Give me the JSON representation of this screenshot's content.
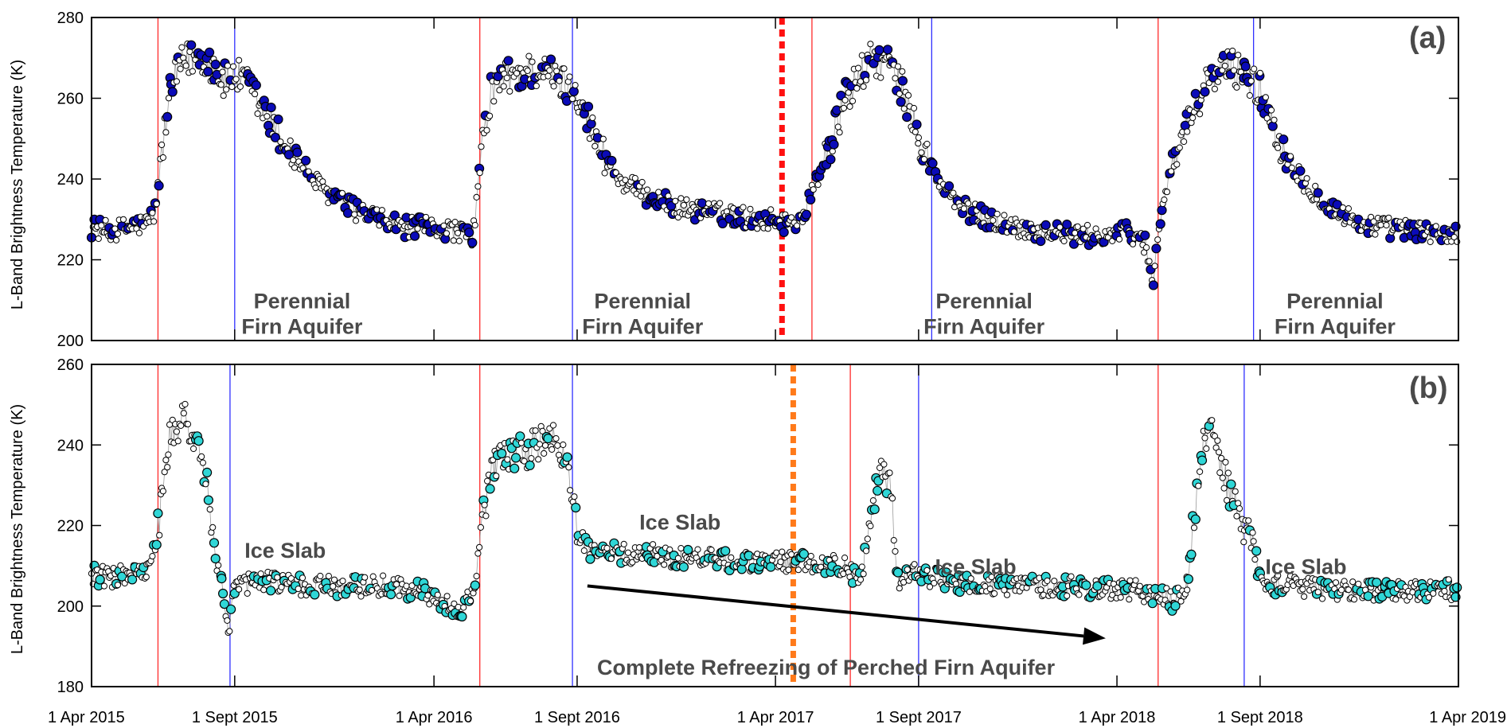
{
  "chart_data": [
    {
      "type": "scatter",
      "panel": "(a)",
      "ylabel": "L-Band Brightness Temperature (K)",
      "ylim": [
        200,
        280
      ],
      "yticks": [
        200,
        220,
        240,
        260,
        280
      ],
      "xlim": [
        "2015-04-01",
        "2019-04-01"
      ],
      "xticks": [
        "2015-04-01",
        "2015-09-01",
        "2016-04-01",
        "2016-09-01",
        "2017-04-01",
        "2017-09-01",
        "2018-04-01",
        "2018-09-01",
        "2019-04-01"
      ],
      "xtick_labels": [
        "1 Apr 2015",
        "1 Sept 2015",
        "1 Apr 2016",
        "1 Sept 2016",
        "1 Apr 2017",
        "1 Sept 2017",
        "1 Apr 2018",
        "1 Sept 2018",
        "1 Apr 2019"
      ],
      "grid": false,
      "marker_colors": {
        "primary": "#0b0bb8",
        "secondary": "#ffffff"
      },
      "series": [
        {
          "marker": "circle",
          "x": [
            "2015-04-01",
            "2015-04-20",
            "2015-05-10",
            "2015-05-30",
            "2015-06-08",
            "2015-06-12",
            "2015-06-18",
            "2015-06-25",
            "2015-07-05",
            "2015-07-15",
            "2015-07-30",
            "2015-08-10",
            "2015-08-20",
            "2015-09-01",
            "2015-09-15",
            "2015-10-01",
            "2015-10-20",
            "2015-11-10",
            "2015-12-01",
            "2016-01-01",
            "2016-02-01",
            "2016-03-01",
            "2016-04-01",
            "2016-05-01",
            "2016-05-12",
            "2016-05-20",
            "2016-06-01",
            "2016-06-15",
            "2016-07-01",
            "2016-07-15",
            "2016-08-01",
            "2016-08-15",
            "2016-09-01",
            "2016-09-20",
            "2016-10-15",
            "2016-11-15",
            "2016-12-15",
            "2017-01-15",
            "2017-02-15",
            "2017-03-15",
            "2017-04-01",
            "2017-04-15",
            "2017-05-01",
            "2017-05-15",
            "2017-06-01",
            "2017-06-15",
            "2017-07-01",
            "2017-07-15",
            "2017-08-01",
            "2017-08-15",
            "2017-09-01",
            "2017-09-20",
            "2017-10-15",
            "2017-11-15",
            "2017-12-15",
            "2018-01-15",
            "2018-02-15",
            "2018-03-15",
            "2018-04-15",
            "2018-05-01",
            "2018-05-10",
            "2018-05-20",
            "2018-06-01",
            "2018-06-15",
            "2018-07-01",
            "2018-07-15",
            "2018-08-01",
            "2018-08-15",
            "2018-09-01",
            "2018-09-20",
            "2018-10-15",
            "2018-11-15",
            "2018-12-15",
            "2019-01-15",
            "2019-02-15",
            "2019-04-01"
          ],
          "y": [
            228,
            227,
            228,
            229,
            232,
            240,
            252,
            262,
            268,
            270,
            270,
            268,
            264,
            266,
            263,
            257,
            250,
            244,
            238,
            233,
            230,
            228,
            228,
            227,
            224,
            243,
            262,
            265,
            266,
            267,
            266,
            264,
            262,
            250,
            240,
            236,
            233,
            232,
            231,
            230,
            230,
            229,
            231,
            240,
            250,
            260,
            266,
            270,
            268,
            262,
            250,
            240,
            233,
            230,
            228,
            227,
            226,
            226,
            227,
            224,
            215,
            235,
            245,
            252,
            262,
            266,
            268,
            266,
            262,
            250,
            240,
            233,
            229,
            228,
            227,
            226
          ]
        }
      ],
      "annotations": [
        {
          "text": "Perennial\nFirn Aquifer",
          "x": "2015-11-12",
          "y": 208
        },
        {
          "text": "Perennial\nFirn Aquifer",
          "x": "2016-11-10",
          "y": 208
        },
        {
          "text": "Perennial\nFirn Aquifer",
          "x": "2017-11-10",
          "y": 208
        },
        {
          "text": "Perennial\nFirn Aquifer",
          "x": "2018-11-20",
          "y": 208
        }
      ],
      "vertical_lines": {
        "red": [
          "2015-06-11",
          "2016-05-20",
          "2017-05-10",
          "2018-05-15"
        ],
        "blue": [
          "2015-09-01",
          "2016-08-27",
          "2017-09-15",
          "2018-08-25"
        ],
        "dotted_red": "2017-04-08"
      }
    },
    {
      "type": "scatter",
      "panel": "(b)",
      "ylabel": "L-Band Brightness Temperature (K)",
      "ylim": [
        180,
        260
      ],
      "yticks": [
        180,
        200,
        220,
        240,
        260
      ],
      "xlim": [
        "2015-04-01",
        "2019-04-01"
      ],
      "xticks": [
        "2015-04-01",
        "2015-09-01",
        "2016-04-01",
        "2016-09-01",
        "2017-04-01",
        "2017-09-01",
        "2018-04-01",
        "2018-09-01",
        "2019-04-01"
      ],
      "xtick_labels": [
        "1 Apr 2015",
        "1 Sept 2015",
        "1 Apr 2016",
        "1 Sept 2016",
        "1 Apr 2017",
        "1 Sept 2017",
        "1 Apr 2018",
        "1 Sept 2018",
        "1 Apr 2019"
      ],
      "grid": false,
      "marker_colors": {
        "primary": "#2fd6d6",
        "secondary": "#ffffff"
      },
      "series": [
        {
          "marker": "circle",
          "x": [
            "2015-04-01",
            "2015-04-20",
            "2015-05-10",
            "2015-05-30",
            "2015-06-08",
            "2015-06-15",
            "2015-06-22",
            "2015-07-01",
            "2015-07-10",
            "2015-07-20",
            "2015-08-01",
            "2015-08-10",
            "2015-08-18",
            "2015-08-25",
            "2015-09-01",
            "2015-09-20",
            "2015-10-15",
            "2015-11-15",
            "2015-12-15",
            "2016-01-15",
            "2016-02-15",
            "2016-03-15",
            "2016-04-15",
            "2016-05-01",
            "2016-05-15",
            "2016-05-25",
            "2016-06-05",
            "2016-06-20",
            "2016-07-05",
            "2016-07-20",
            "2016-08-05",
            "2016-08-20",
            "2016-09-01",
            "2016-09-15",
            "2016-10-15",
            "2016-11-15",
            "2016-12-15",
            "2017-01-15",
            "2017-02-15",
            "2017-03-15",
            "2017-04-15",
            "2017-05-15",
            "2017-06-15",
            "2017-07-01",
            "2017-07-10",
            "2017-07-20",
            "2017-08-01",
            "2017-08-10",
            "2017-08-20",
            "2017-09-01",
            "2017-09-20",
            "2017-10-15",
            "2017-11-15",
            "2017-12-15",
            "2018-01-15",
            "2018-02-15",
            "2018-03-15",
            "2018-04-15",
            "2018-05-15",
            "2018-06-01",
            "2018-06-15",
            "2018-07-01",
            "2018-07-10",
            "2018-07-20",
            "2018-08-01",
            "2018-08-15",
            "2018-08-25",
            "2018-09-01",
            "2018-09-20",
            "2018-10-15",
            "2018-11-15",
            "2018-12-15",
            "2019-01-15",
            "2019-02-15",
            "2019-04-01"
          ],
          "y": [
            208,
            207,
            208,
            208,
            215,
            225,
            240,
            244,
            246,
            243,
            232,
            215,
            205,
            192,
            205,
            206,
            206,
            205,
            205,
            205,
            205,
            204,
            200,
            198,
            205,
            225,
            236,
            237,
            238,
            240,
            241,
            238,
            218,
            214,
            213,
            213,
            212,
            212,
            211,
            211,
            211,
            211,
            210,
            206,
            218,
            233,
            232,
            206,
            209,
            208,
            207,
            206,
            205,
            205,
            205,
            205,
            204,
            204,
            203,
            201,
            205,
            240,
            246,
            236,
            227,
            220,
            216,
            206,
            205,
            205,
            204,
            204,
            204,
            204,
            204
          ]
        }
      ],
      "annotations": [
        {
          "text": "Ice Slab",
          "x": "2015-10-25",
          "y": 212
        },
        {
          "text": "Ice Slab",
          "x": "2016-12-20",
          "y": 219
        },
        {
          "text": "Ice Slab",
          "x": "2017-11-01",
          "y": 208
        },
        {
          "text": "Ice Slab",
          "x": "2018-10-20",
          "y": 208
        },
        {
          "text": "Complete Refreezing of Perched Firn Aquifer",
          "x": "2017-05-25",
          "y": 183
        }
      ],
      "arrow": {
        "from": {
          "x": "2016-09-12",
          "y": 205
        },
        "to": {
          "x": "2018-03-20",
          "y": 192
        }
      },
      "vertical_lines": {
        "red": [
          "2015-06-11",
          "2016-05-20",
          "2017-06-20",
          "2018-05-15"
        ],
        "blue": [
          "2015-08-27",
          "2016-08-27",
          "2017-09-01",
          "2018-08-15"
        ],
        "dotted_orange": "2017-04-20"
      }
    }
  ]
}
